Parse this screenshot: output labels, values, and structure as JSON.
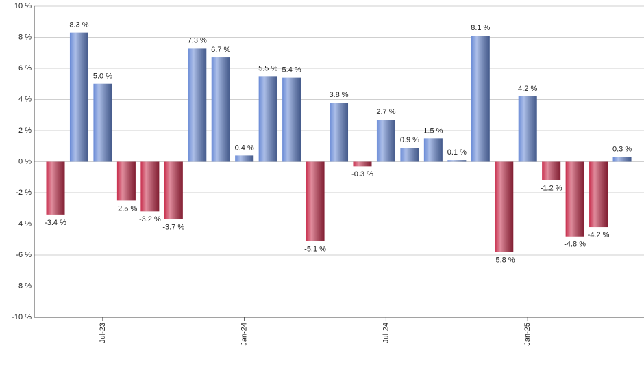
{
  "chart_data": {
    "type": "bar",
    "categories": [
      null,
      null,
      "Jul-23",
      null,
      null,
      null,
      null,
      null,
      "Jan-24",
      null,
      null,
      null,
      null,
      null,
      "Jul-24",
      null,
      null,
      null,
      null,
      null,
      "Jan-25",
      null,
      null,
      null,
      null
    ],
    "values": [
      -3.4,
      8.3,
      5.0,
      -2.5,
      -3.2,
      -3.7,
      7.3,
      6.7,
      0.4,
      5.5,
      5.4,
      -5.1,
      3.8,
      -0.3,
      2.7,
      0.9,
      1.5,
      0.1,
      8.1,
      -5.8,
      4.2,
      -1.2,
      -4.8,
      -4.2,
      0.3
    ],
    "value_labels": [
      "-3.4 %",
      "8.3 %",
      "5.0 %",
      "-2.5 %",
      "-3.2 %",
      "-3.7 %",
      "7.3 %",
      "6.7 %",
      "0.4 %",
      "5.5 %",
      "5.4 %",
      "-5.1 %",
      "3.8 %",
      "-0.3 %",
      "2.7 %",
      "0.9 %",
      "1.5 %",
      "0.1 %",
      "8.1 %",
      "-5.8 %",
      "4.2 %",
      "-1.2 %",
      "-4.8 %",
      "-4.2 %",
      "0.3 %"
    ],
    "positive_color": "#6a8bd6",
    "negative_color": "#c8304e",
    "ylim": [
      -10,
      10
    ],
    "yticks": [
      {
        "value": -10,
        "label": "-10 %"
      },
      {
        "value": -8,
        "label": "-8 %"
      },
      {
        "value": -6,
        "label": "-6 %"
      },
      {
        "value": -4,
        "label": "-4 %"
      },
      {
        "value": -2,
        "label": "-2 %"
      },
      {
        "value": 0,
        "label": "0 %"
      },
      {
        "value": 2,
        "label": "2 %"
      },
      {
        "value": 4,
        "label": "4 %"
      },
      {
        "value": 6,
        "label": "6 %"
      },
      {
        "value": 8,
        "label": "8 %"
      },
      {
        "value": 10,
        "label": "10 %"
      }
    ],
    "grid": true
  }
}
